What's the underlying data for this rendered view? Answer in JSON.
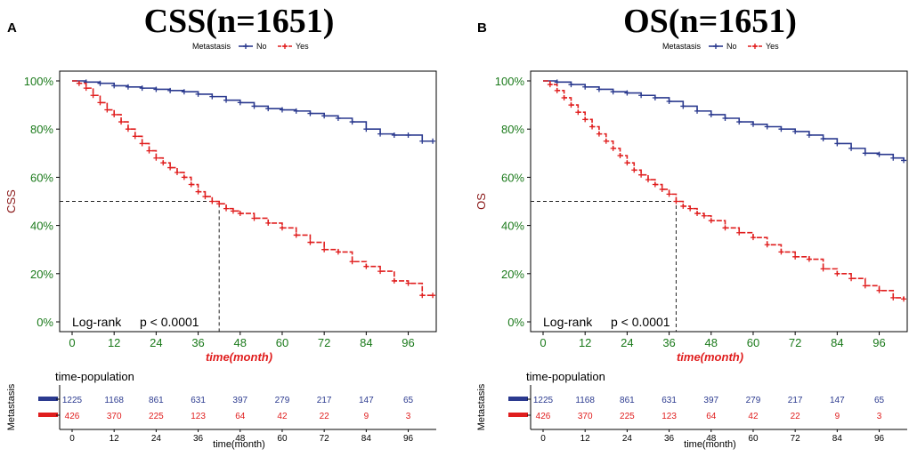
{
  "chart_data": [
    {
      "type": "line",
      "panel_label": "A",
      "title": "CSS(n=1651)",
      "ylabel": "CSS",
      "xlabel": "time(month)",
      "legend_title": "Metastasis",
      "legend_entries": [
        "No",
        "Yes"
      ],
      "xlim": [
        0,
        104
      ],
      "ylim": [
        0,
        1
      ],
      "x_ticks": [
        0,
        12,
        24,
        36,
        48,
        60,
        72,
        84,
        96
      ],
      "y_tick_labels": [
        "0%",
        "20%",
        "40%",
        "60%",
        "80%",
        "100%"
      ],
      "median_survival": {
        "series": "Yes",
        "time": 42,
        "survival": 0.5
      },
      "annotation": {
        "test": "Log-rank",
        "p": "p < 0.0001"
      },
      "series": [
        {
          "name": "No",
          "color": "#2B3A8F",
          "x": [
            0,
            4,
            8,
            12,
            16,
            20,
            24,
            28,
            32,
            36,
            40,
            44,
            48,
            52,
            56,
            60,
            64,
            68,
            72,
            76,
            80,
            84,
            88,
            92,
            96,
            100,
            103
          ],
          "y": [
            1.0,
            0.995,
            0.99,
            0.98,
            0.975,
            0.97,
            0.965,
            0.96,
            0.955,
            0.945,
            0.935,
            0.92,
            0.91,
            0.895,
            0.885,
            0.88,
            0.875,
            0.865,
            0.855,
            0.845,
            0.83,
            0.8,
            0.78,
            0.775,
            0.775,
            0.75,
            0.75
          ]
        },
        {
          "name": "Yes",
          "color": "#E01E1E",
          "x": [
            0,
            2,
            4,
            6,
            8,
            10,
            12,
            14,
            16,
            18,
            20,
            22,
            24,
            26,
            28,
            30,
            32,
            34,
            36,
            38,
            40,
            42,
            44,
            46,
            48,
            52,
            56,
            60,
            64,
            68,
            72,
            76,
            80,
            84,
            88,
            92,
            96,
            100,
            103
          ],
          "y": [
            1.0,
            0.99,
            0.97,
            0.94,
            0.91,
            0.88,
            0.86,
            0.83,
            0.8,
            0.77,
            0.74,
            0.71,
            0.68,
            0.66,
            0.64,
            0.62,
            0.6,
            0.57,
            0.54,
            0.52,
            0.5,
            0.49,
            0.47,
            0.46,
            0.45,
            0.43,
            0.41,
            0.39,
            0.36,
            0.33,
            0.3,
            0.29,
            0.25,
            0.23,
            0.21,
            0.17,
            0.16,
            0.11,
            0.11
          ]
        }
      ],
      "risk_table": {
        "title": "time-population",
        "ylabel": "Metastasis",
        "xlabel": "time(month)",
        "times": [
          0,
          12,
          24,
          36,
          48,
          60,
          72,
          84,
          96
        ],
        "rows": [
          {
            "name": "No",
            "color": "#2B3A8F",
            "values": [
              1225,
              1168,
              861,
              631,
              397,
              279,
              217,
              147,
              65
            ]
          },
          {
            "name": "Yes",
            "color": "#E01E1E",
            "values": [
              426,
              370,
              225,
              123,
              64,
              42,
              22,
              9,
              3
            ]
          }
        ]
      }
    },
    {
      "type": "line",
      "panel_label": "B",
      "title": "OS(n=1651)",
      "ylabel": "OS",
      "xlabel": "time(month)",
      "legend_title": "Metastasis",
      "legend_entries": [
        "No",
        "Yes"
      ],
      "xlim": [
        0,
        104
      ],
      "ylim": [
        0,
        1
      ],
      "x_ticks": [
        0,
        12,
        24,
        36,
        48,
        60,
        72,
        84,
        96
      ],
      "y_tick_labels": [
        "0%",
        "20%",
        "40%",
        "60%",
        "80%",
        "100%"
      ],
      "median_survival": {
        "series": "Yes",
        "time": 38,
        "survival": 0.5
      },
      "annotation": {
        "test": "Log-rank",
        "p": "p < 0.0001"
      },
      "series": [
        {
          "name": "No",
          "color": "#2B3A8F",
          "x": [
            0,
            4,
            8,
            12,
            16,
            20,
            24,
            28,
            32,
            36,
            40,
            44,
            48,
            52,
            56,
            60,
            64,
            68,
            72,
            76,
            80,
            84,
            88,
            92,
            96,
            100,
            103
          ],
          "y": [
            1.0,
            0.995,
            0.985,
            0.975,
            0.965,
            0.955,
            0.95,
            0.94,
            0.93,
            0.915,
            0.895,
            0.875,
            0.86,
            0.845,
            0.83,
            0.82,
            0.81,
            0.8,
            0.79,
            0.775,
            0.76,
            0.74,
            0.72,
            0.7,
            0.695,
            0.68,
            0.67
          ]
        },
        {
          "name": "Yes",
          "color": "#E01E1E",
          "x": [
            0,
            2,
            4,
            6,
            8,
            10,
            12,
            14,
            16,
            18,
            20,
            22,
            24,
            26,
            28,
            30,
            32,
            34,
            36,
            38,
            40,
            42,
            44,
            46,
            48,
            52,
            56,
            60,
            64,
            68,
            72,
            76,
            80,
            84,
            88,
            92,
            96,
            100,
            103
          ],
          "y": [
            1.0,
            0.985,
            0.96,
            0.93,
            0.9,
            0.87,
            0.84,
            0.81,
            0.78,
            0.75,
            0.72,
            0.69,
            0.66,
            0.63,
            0.61,
            0.59,
            0.57,
            0.55,
            0.53,
            0.5,
            0.48,
            0.47,
            0.45,
            0.44,
            0.42,
            0.39,
            0.37,
            0.35,
            0.32,
            0.29,
            0.27,
            0.26,
            0.22,
            0.2,
            0.18,
            0.15,
            0.13,
            0.1,
            0.095
          ]
        }
      ],
      "risk_table": {
        "title": "time-population",
        "ylabel": "Metastasis",
        "xlabel": "time(month)",
        "times": [
          0,
          12,
          24,
          36,
          48,
          60,
          72,
          84,
          96
        ],
        "rows": [
          {
            "name": "No",
            "color": "#2B3A8F",
            "values": [
              1225,
              1168,
              861,
              631,
              397,
              279,
              217,
              147,
              65
            ]
          },
          {
            "name": "Yes",
            "color": "#E01E1E",
            "values": [
              426,
              370,
              225,
              123,
              64,
              42,
              22,
              9,
              3
            ]
          }
        ]
      }
    }
  ],
  "colors": {
    "tick_label": "#1B7A1B",
    "ylabel": "#8B1A1A",
    "xlabel": "#E01E1E",
    "reference_line": "#222222",
    "axis": "#000000"
  }
}
